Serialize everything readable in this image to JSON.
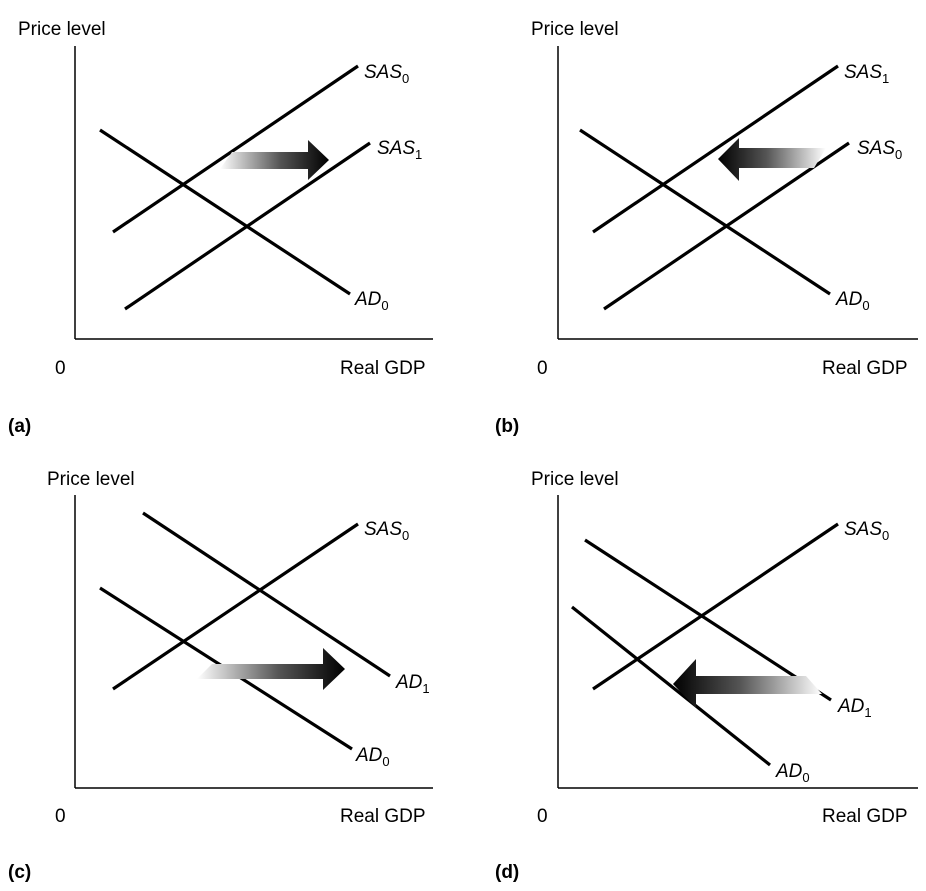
{
  "panels": [
    {
      "id": "a",
      "panel_label": "(a)",
      "axis_y_label": "Price level",
      "axis_x_label": "Real GDP",
      "origin_label": "0",
      "curves": [
        {
          "name": "SAS",
          "sub": "0"
        },
        {
          "name": "SAS",
          "sub": "1"
        },
        {
          "name": "AD",
          "sub": "0"
        }
      ],
      "arrow_direction": "right"
    },
    {
      "id": "b",
      "panel_label": "(b)",
      "axis_y_label": "Price level",
      "axis_x_label": "Real GDP",
      "origin_label": "0",
      "curves": [
        {
          "name": "SAS",
          "sub": "1"
        },
        {
          "name": "SAS",
          "sub": "0"
        },
        {
          "name": "AD",
          "sub": "0"
        }
      ],
      "arrow_direction": "left"
    },
    {
      "id": "c",
      "panel_label": "(c)",
      "axis_y_label": "Price level",
      "axis_x_label": "Real GDP",
      "origin_label": "0",
      "curves": [
        {
          "name": "SAS",
          "sub": "0"
        },
        {
          "name": "AD",
          "sub": "1"
        },
        {
          "name": "AD",
          "sub": "0"
        }
      ],
      "arrow_direction": "right"
    },
    {
      "id": "d",
      "panel_label": "(d)",
      "axis_y_label": "Price level",
      "axis_x_label": "Real GDP",
      "origin_label": "0",
      "curves": [
        {
          "name": "SAS",
          "sub": "0"
        },
        {
          "name": "AD",
          "sub": "1"
        },
        {
          "name": "AD",
          "sub": "0"
        }
      ],
      "arrow_direction": "left"
    }
  ]
}
